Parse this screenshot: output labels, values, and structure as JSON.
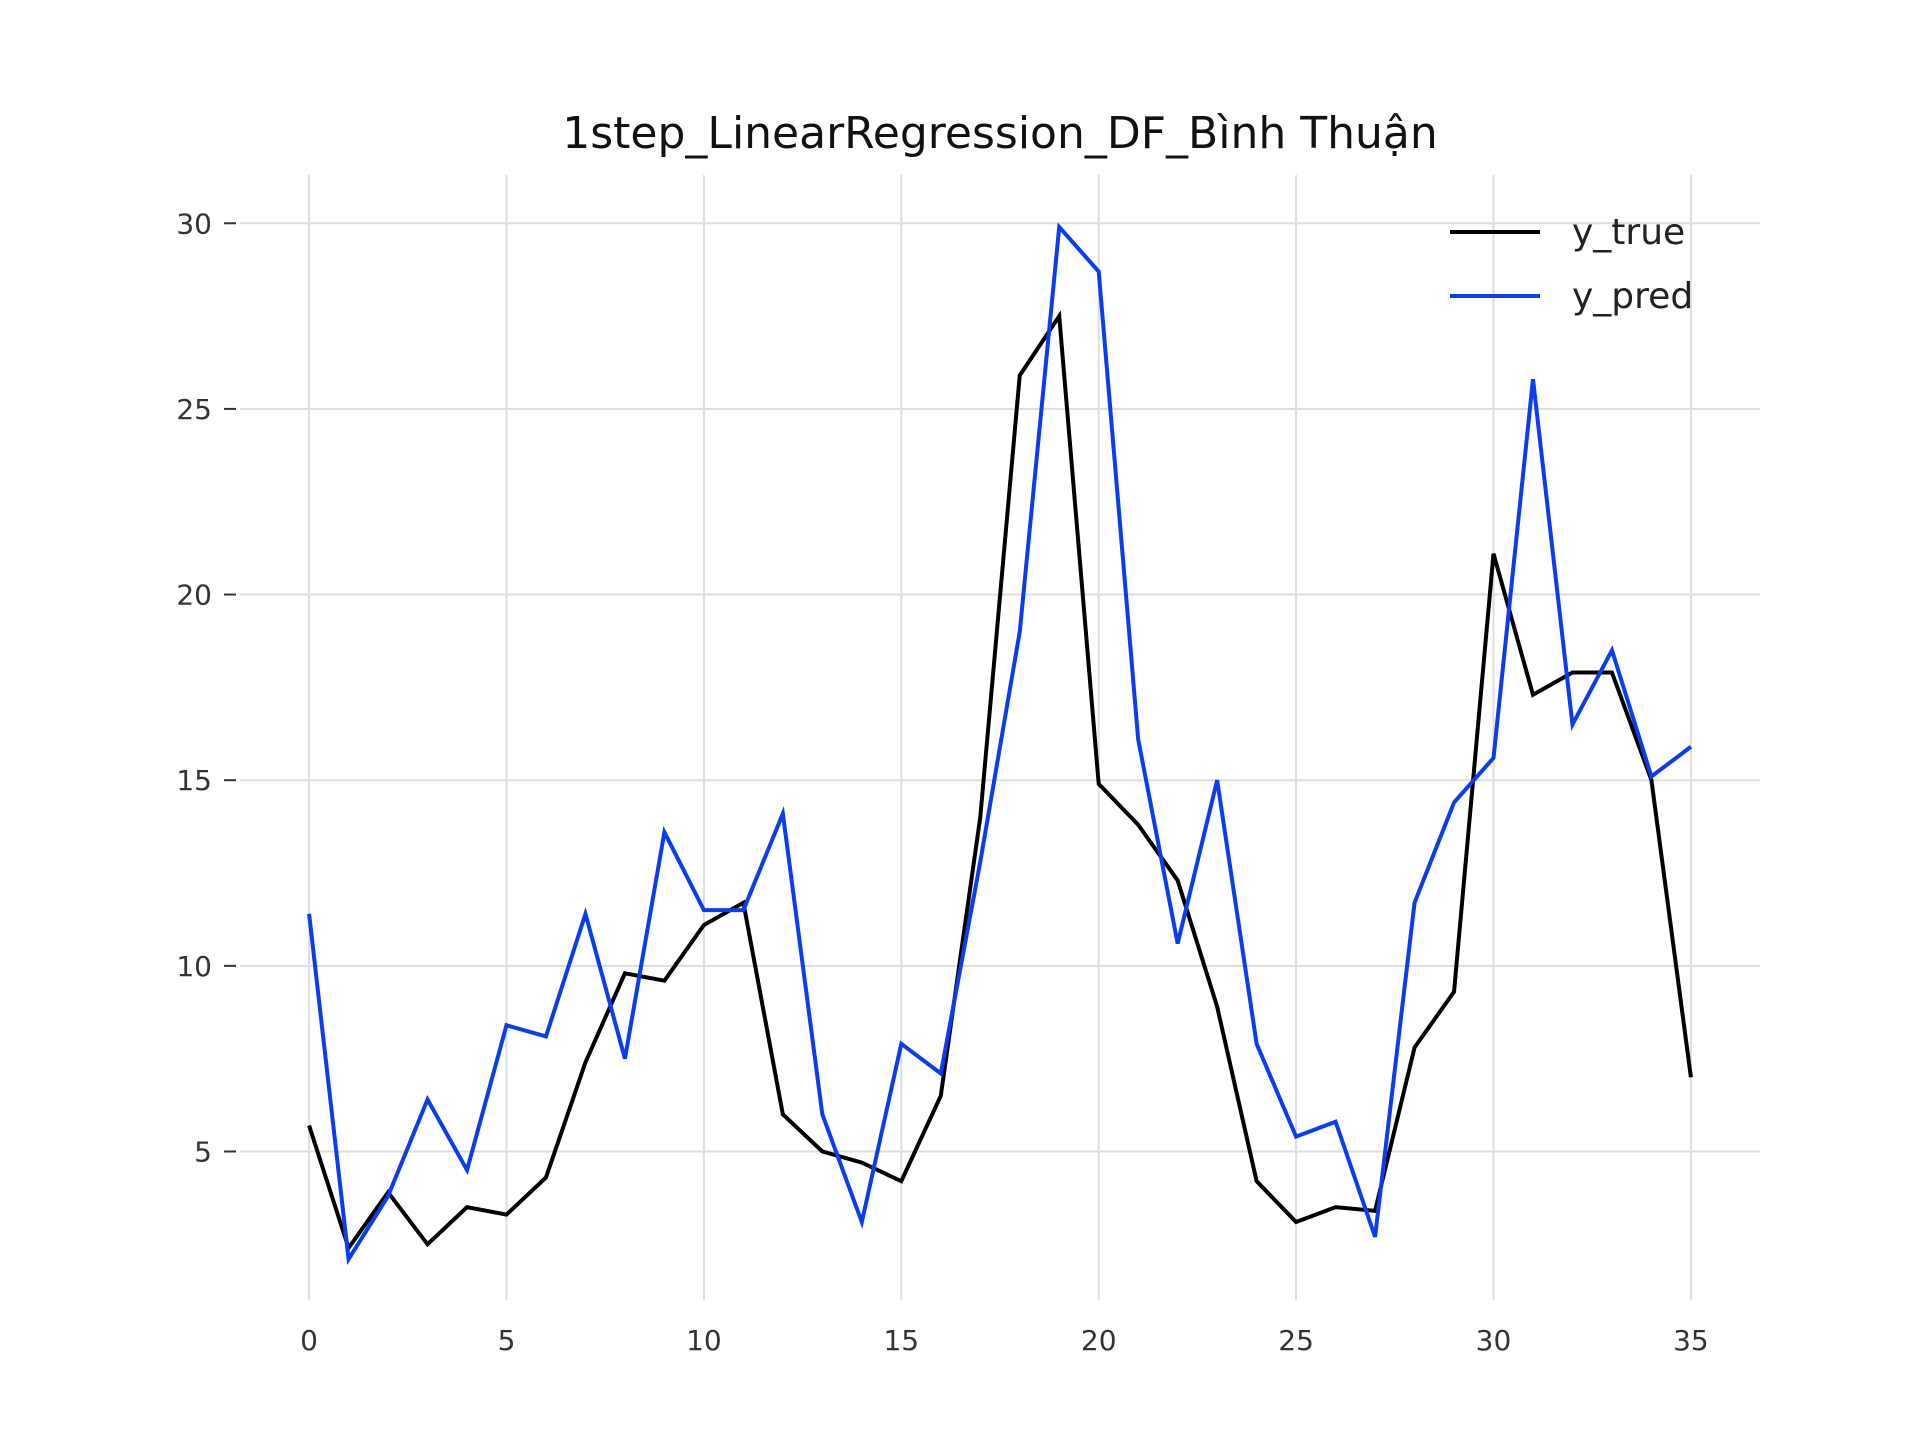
{
  "chart_data": {
    "type": "line",
    "title": "1step_LinearRegression_DF_Bình Thuận",
    "xlabel": "",
    "ylabel": "",
    "xlim": [
      -1.75,
      36.75
    ],
    "ylim": [
      1.0,
      31.3
    ],
    "xticks": [
      0,
      5,
      10,
      15,
      20,
      25,
      30,
      35
    ],
    "yticks": [
      5,
      10,
      15,
      20,
      25,
      30
    ],
    "grid": true,
    "legend_position": "top-right",
    "x": [
      0,
      1,
      2,
      3,
      4,
      5,
      6,
      7,
      8,
      9,
      10,
      11,
      12,
      13,
      14,
      15,
      16,
      17,
      18,
      19,
      20,
      21,
      22,
      23,
      24,
      25,
      26,
      27,
      28,
      29,
      30,
      31,
      32,
      33,
      34,
      35
    ],
    "series": [
      {
        "name": "y_true",
        "color": "#000000",
        "values": [
          5.7,
          2.4,
          3.9,
          2.5,
          3.5,
          3.3,
          4.3,
          7.4,
          9.8,
          9.6,
          11.1,
          11.7,
          6.0,
          5.0,
          4.7,
          4.2,
          6.5,
          14.0,
          25.9,
          27.5,
          14.9,
          13.8,
          12.3,
          8.9,
          4.2,
          3.1,
          3.5,
          3.4,
          7.8,
          9.3,
          21.1,
          17.3,
          17.9,
          17.9,
          15.0,
          7.0
        ]
      },
      {
        "name": "y_pred",
        "color": "#0a3cf0",
        "values": [
          11.4,
          2.1,
          3.8,
          6.4,
          4.5,
          8.4,
          8.1,
          11.4,
          7.5,
          13.6,
          11.5,
          11.5,
          14.1,
          6.0,
          3.1,
          7.9,
          7.1,
          12.8,
          19.0,
          29.9,
          28.7,
          16.1,
          10.6,
          15.0,
          7.9,
          5.4,
          5.8,
          2.7,
          11.7,
          14.4,
          15.6,
          25.8,
          16.5,
          18.5,
          15.1,
          15.9
        ]
      }
    ]
  }
}
